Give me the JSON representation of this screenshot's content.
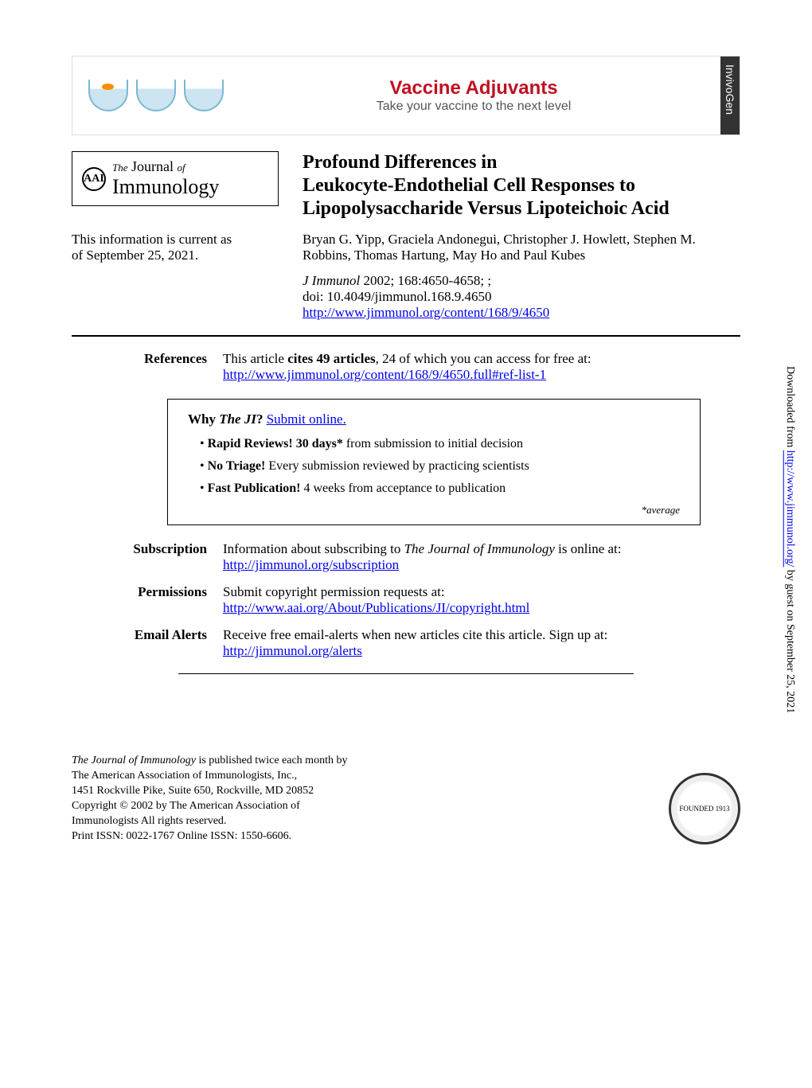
{
  "ad": {
    "title": "Vaccine Adjuvants",
    "subtitle": "Take your vaccine to the next level",
    "title_color": "#c01020",
    "brand": "InvivoGen"
  },
  "logo": {
    "badge": "AAI",
    "the": "The",
    "journal": "Journal",
    "of": "of",
    "immunology": "Immunology"
  },
  "article": {
    "title_line1": "Profound Differences in",
    "title_line2": "Leukocyte-Endothelial Cell Responses to",
    "title_line3": "Lipopolysaccharide Versus Lipoteichoic Acid"
  },
  "current": {
    "line1": "This information is current as",
    "line2": "of September 25, 2021."
  },
  "authors": "Bryan G. Yipp, Graciela Andonegui, Christopher J. Howlett, Stephen M. Robbins, Thomas Hartung, May Ho and Paul Kubes",
  "citation": {
    "journal": "J Immunol",
    "rest": " 2002; 168:4650-4658; ;",
    "doi": "doi: 10.4049/jimmunol.168.9.4650",
    "url": "http://www.jimmunol.org/content/168/9/4650"
  },
  "references": {
    "label": "References",
    "text_pre": "This article ",
    "text_bold": "cites 49 articles",
    "text_post": ", 24 of which you can access for free at:",
    "url": "http://www.jimmunol.org/content/168/9/4650.full#ref-list-1"
  },
  "whybox": {
    "title_pre": "Why ",
    "title_ji": "The JI",
    "title_q": "? ",
    "submit": "Submit online.",
    "items": [
      {
        "bold": "Rapid Reviews! 30 days*",
        "rest": " from submission to initial decision"
      },
      {
        "bold": "No Triage!",
        "rest": " Every submission reviewed by practicing scientists"
      },
      {
        "bold": "Fast Publication!",
        "rest": " 4 weeks from acceptance to publication"
      }
    ],
    "note": "*average"
  },
  "subscription": {
    "label": "Subscription",
    "text_pre": "Information about subscribing to ",
    "text_ital": "The Journal of Immunology",
    "text_post": " is online at:",
    "url": "http://jimmunol.org/subscription"
  },
  "permissions": {
    "label": "Permissions",
    "text": "Submit copyright permission requests at:",
    "url": "http://www.aai.org/About/Publications/JI/copyright.html"
  },
  "alerts": {
    "label": "Email Alerts",
    "text": "Receive free email-alerts when new articles cite this article. Sign up at:",
    "url": "http://jimmunol.org/alerts"
  },
  "footer": {
    "l1_ital": "The Journal of Immunology",
    "l1_rest": " is published twice each month by",
    "l2": "The American Association of Immunologists, Inc.,",
    "l3": "1451 Rockville Pike, Suite 650, Rockville, MD 20852",
    "l4": "Copyright © 2002 by The American Association of",
    "l5": "Immunologists All rights reserved.",
    "l6": "Print ISSN: 0022-1767 Online ISSN: 1550-6606.",
    "seal": "FOUNDED 1913"
  },
  "side": {
    "pre": "Downloaded from ",
    "url": "http://www.jimmunol.org/",
    "post": " by guest on September 25, 2021"
  }
}
